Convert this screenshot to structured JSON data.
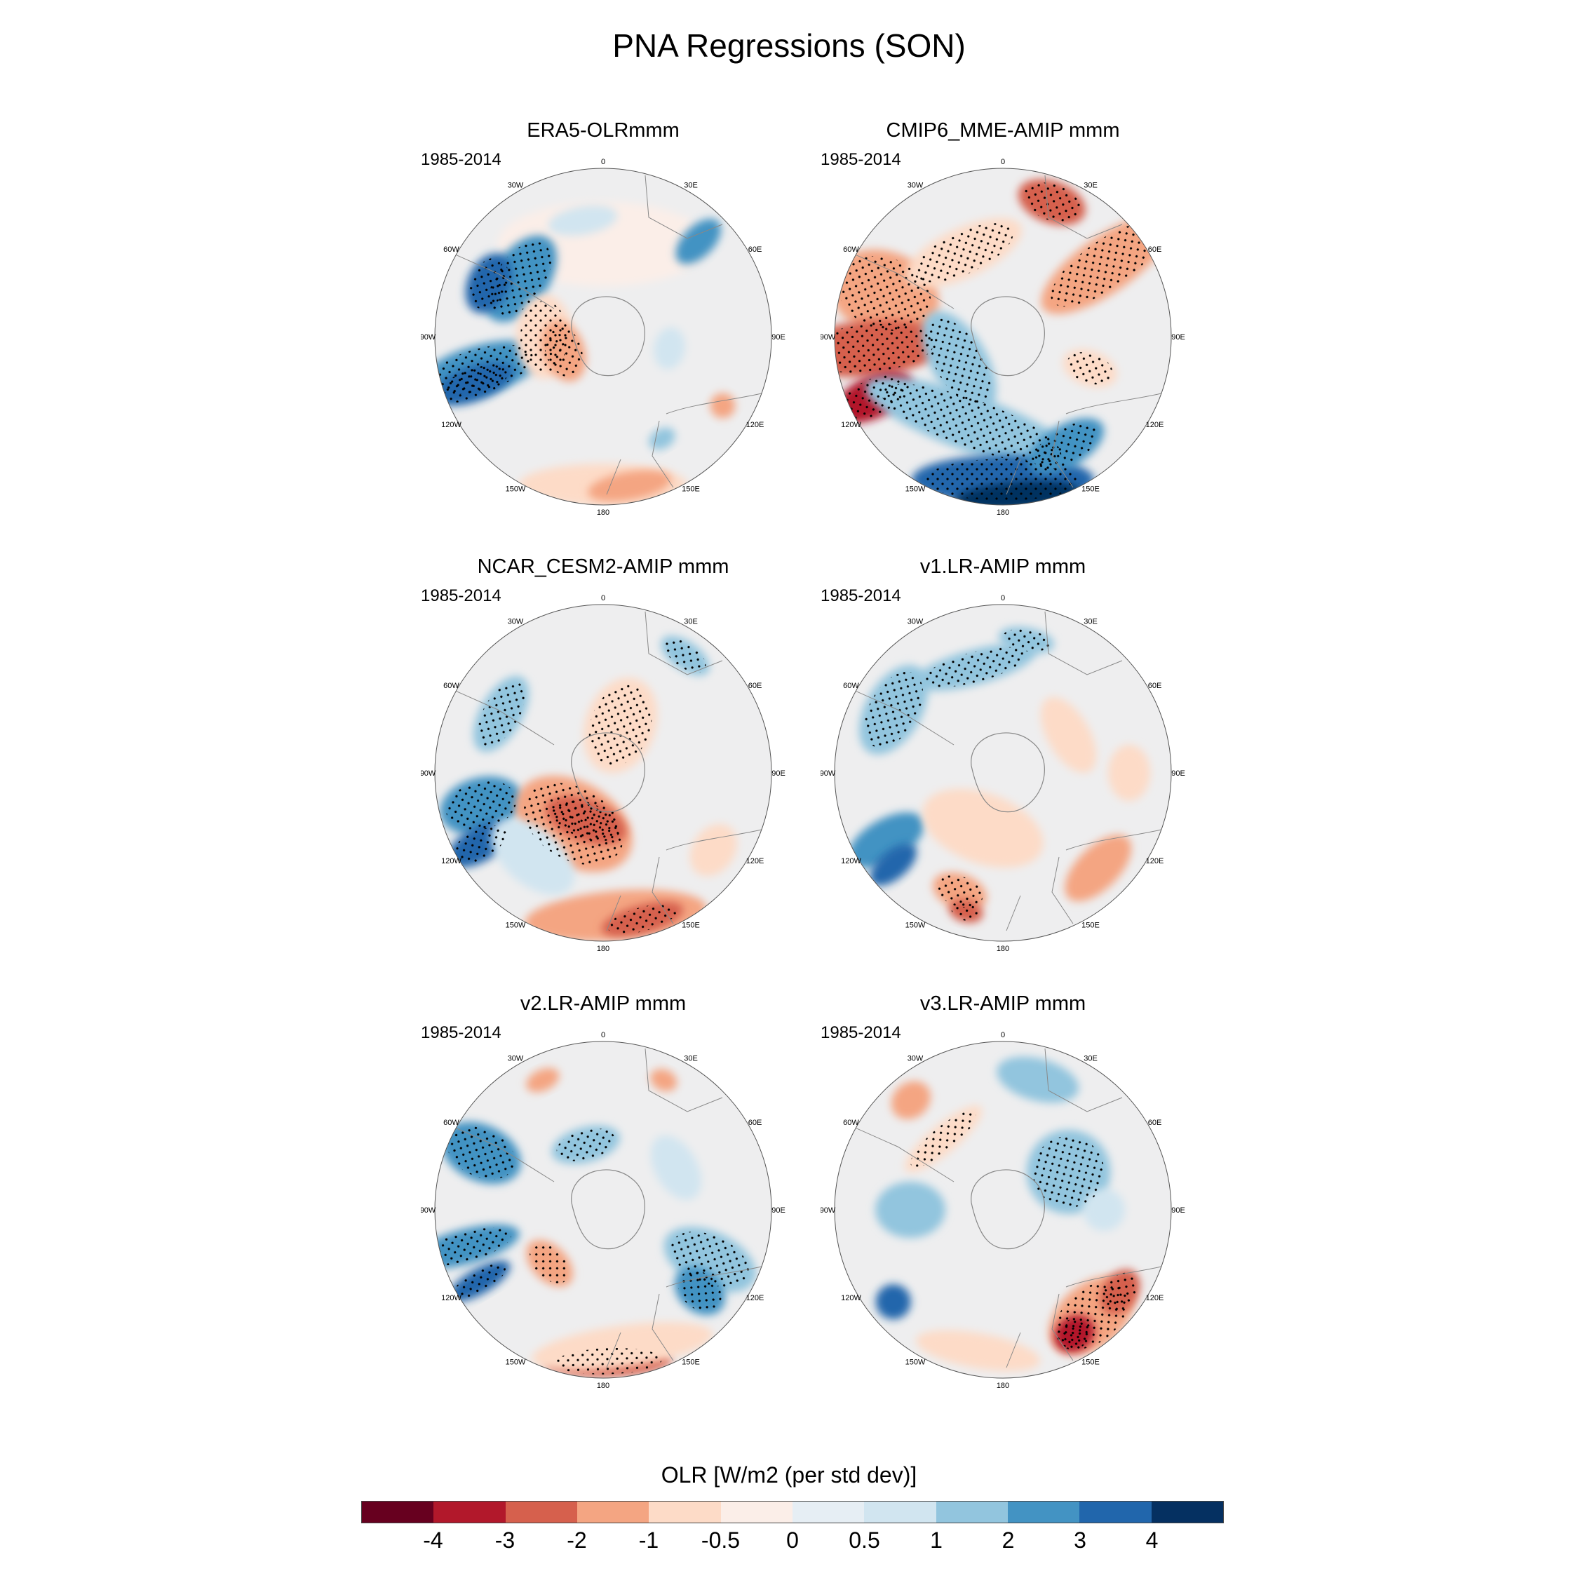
{
  "title": "PNA Regressions (SON)",
  "panels": [
    {
      "id": "p1",
      "title": "ERA5-OLRmmm",
      "period": "1985-2014",
      "pattern": "era5"
    },
    {
      "id": "p2",
      "title": "CMIP6_MME-AMIP  mmm",
      "period": "1985-2014",
      "pattern": "cmip6"
    },
    {
      "id": "p3",
      "title": "NCAR_CESM2-AMIP  mmm",
      "period": "1985-2014",
      "pattern": "cesm2"
    },
    {
      "id": "p4",
      "title": "v1.LR-AMIP  mmm",
      "period": "1985-2014",
      "pattern": "v1"
    },
    {
      "id": "p5",
      "title": "v2.LR-AMIP  mmm",
      "period": "1985-2014",
      "pattern": "v2"
    },
    {
      "id": "p6",
      "title": "v3.LR-AMIP  mmm",
      "period": "1985-2014",
      "pattern": "v3"
    }
  ],
  "longitude_labels": [
    "0",
    "30E",
    "60E",
    "90E",
    "120E",
    "150E",
    "180",
    "150W",
    "120W",
    "90W",
    "60W",
    "30W"
  ],
  "colorbar": {
    "title": "OLR [W/m2 (per std dev)]",
    "labels": [
      "-4",
      "-3",
      "-2",
      "-1",
      "-0.5",
      "0",
      "0.5",
      "1",
      "2",
      "3",
      "4"
    ],
    "colors": [
      "#67001f",
      "#b2182b",
      "#d6604d",
      "#f4a582",
      "#fddbc7",
      "#fbeee8",
      "#e6eef4",
      "#d1e5f0",
      "#92c5de",
      "#4393c3",
      "#2166ac",
      "#053061"
    ]
  }
}
